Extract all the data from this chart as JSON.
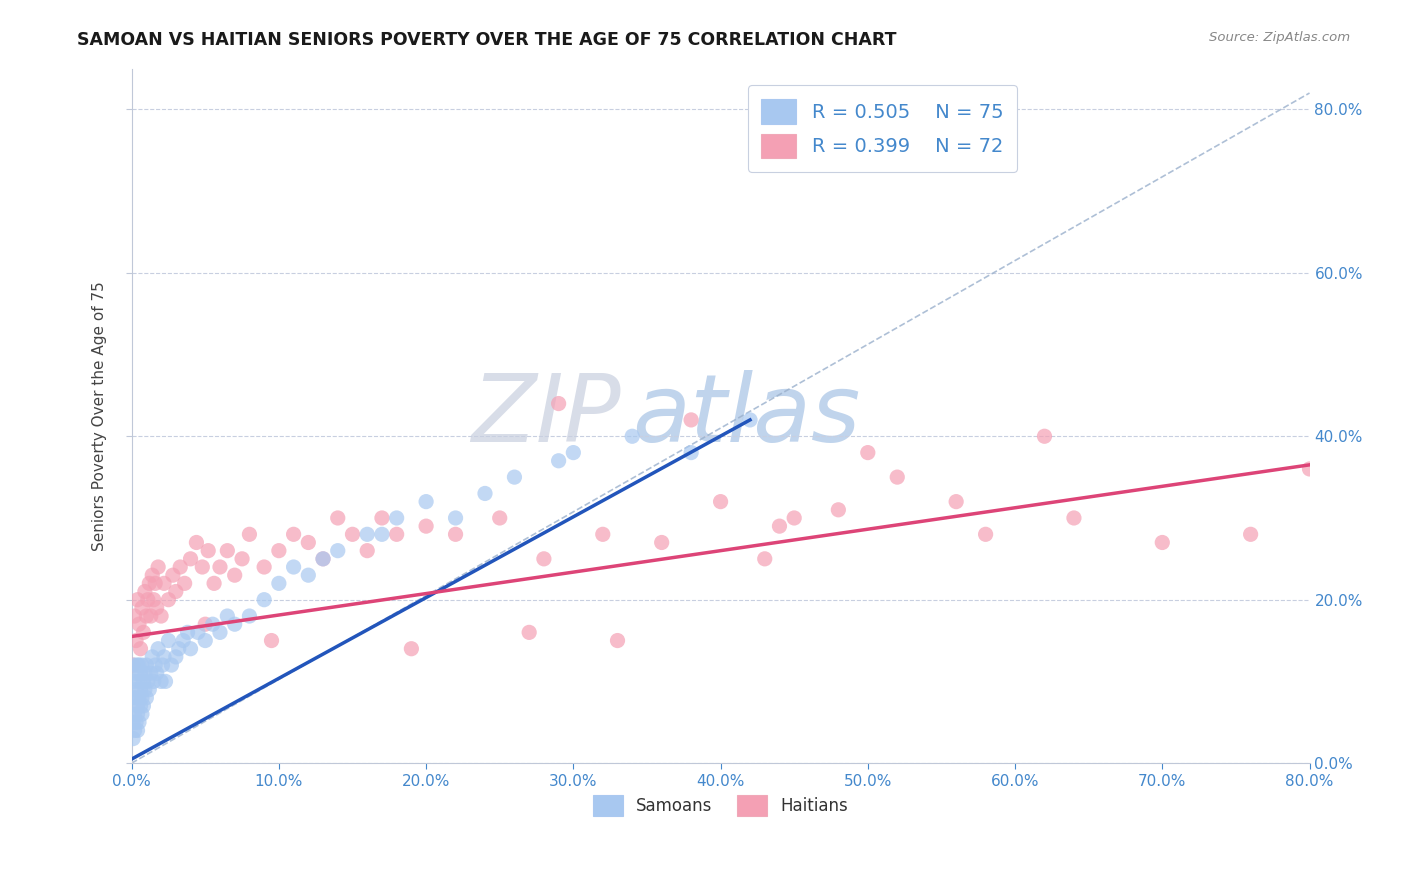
{
  "title": "SAMOAN VS HAITIAN SENIORS POVERTY OVER THE AGE OF 75 CORRELATION CHART",
  "source": "Source: ZipAtlas.com",
  "ylabel": "Seniors Poverty Over the Age of 75",
  "samoan_R": 0.505,
  "samoan_N": 75,
  "haitian_R": 0.399,
  "haitian_N": 72,
  "samoan_color": "#a8c8f0",
  "haitian_color": "#f4a0b4",
  "samoan_line_color": "#2255bb",
  "haitian_line_color": "#dd4477",
  "diagonal_color": "#9ab0cc",
  "background_color": "#ffffff",
  "zip_watermark_color": "#d8dde8",
  "atlas_watermark_color": "#c0d4ec",
  "xlim": [
    0.0,
    0.8
  ],
  "ylim": [
    0.0,
    0.85
  ],
  "xticks": [
    0.0,
    0.1,
    0.2,
    0.3,
    0.4,
    0.5,
    0.6,
    0.7,
    0.8
  ],
  "yticks": [
    0.0,
    0.2,
    0.4,
    0.6,
    0.8
  ],
  "samoan_x": [
    0.001,
    0.001,
    0.001,
    0.002,
    0.002,
    0.002,
    0.002,
    0.003,
    0.003,
    0.003,
    0.003,
    0.004,
    0.004,
    0.004,
    0.004,
    0.005,
    0.005,
    0.005,
    0.005,
    0.006,
    0.006,
    0.006,
    0.007,
    0.007,
    0.007,
    0.008,
    0.008,
    0.009,
    0.009,
    0.01,
    0.01,
    0.011,
    0.012,
    0.013,
    0.014,
    0.015,
    0.016,
    0.017,
    0.018,
    0.02,
    0.021,
    0.022,
    0.023,
    0.025,
    0.027,
    0.03,
    0.032,
    0.035,
    0.038,
    0.04,
    0.045,
    0.05,
    0.055,
    0.06,
    0.065,
    0.07,
    0.08,
    0.09,
    0.1,
    0.11,
    0.12,
    0.14,
    0.16,
    0.18,
    0.2,
    0.22,
    0.24,
    0.26,
    0.3,
    0.34,
    0.38,
    0.42,
    0.17,
    0.13,
    0.29
  ],
  "samoan_y": [
    0.05,
    0.08,
    0.03,
    0.1,
    0.06,
    0.12,
    0.04,
    0.08,
    0.11,
    0.05,
    0.09,
    0.07,
    0.12,
    0.06,
    0.04,
    0.1,
    0.08,
    0.05,
    0.12,
    0.07,
    0.09,
    0.11,
    0.08,
    0.12,
    0.06,
    0.1,
    0.07,
    0.09,
    0.11,
    0.08,
    0.12,
    0.1,
    0.09,
    0.11,
    0.13,
    0.1,
    0.12,
    0.11,
    0.14,
    0.1,
    0.12,
    0.13,
    0.1,
    0.15,
    0.12,
    0.13,
    0.14,
    0.15,
    0.16,
    0.14,
    0.16,
    0.15,
    0.17,
    0.16,
    0.18,
    0.17,
    0.18,
    0.2,
    0.22,
    0.24,
    0.23,
    0.26,
    0.28,
    0.3,
    0.32,
    0.3,
    0.33,
    0.35,
    0.38,
    0.4,
    0.38,
    0.42,
    0.28,
    0.25,
    0.37
  ],
  "haitian_x": [
    0.001,
    0.002,
    0.003,
    0.004,
    0.005,
    0.006,
    0.007,
    0.008,
    0.009,
    0.01,
    0.011,
    0.012,
    0.013,
    0.014,
    0.015,
    0.016,
    0.017,
    0.018,
    0.02,
    0.022,
    0.025,
    0.028,
    0.03,
    0.033,
    0.036,
    0.04,
    0.044,
    0.048,
    0.052,
    0.056,
    0.06,
    0.065,
    0.07,
    0.075,
    0.08,
    0.09,
    0.1,
    0.11,
    0.12,
    0.13,
    0.14,
    0.15,
    0.16,
    0.17,
    0.18,
    0.2,
    0.22,
    0.25,
    0.28,
    0.32,
    0.36,
    0.4,
    0.44,
    0.48,
    0.52,
    0.58,
    0.64,
    0.7,
    0.76,
    0.8,
    0.05,
    0.095,
    0.19,
    0.27,
    0.33,
    0.45,
    0.56,
    0.62,
    0.43,
    0.5,
    0.38,
    0.29
  ],
  "haitian_y": [
    0.12,
    0.18,
    0.15,
    0.2,
    0.17,
    0.14,
    0.19,
    0.16,
    0.21,
    0.18,
    0.2,
    0.22,
    0.18,
    0.23,
    0.2,
    0.22,
    0.19,
    0.24,
    0.18,
    0.22,
    0.2,
    0.23,
    0.21,
    0.24,
    0.22,
    0.25,
    0.27,
    0.24,
    0.26,
    0.22,
    0.24,
    0.26,
    0.23,
    0.25,
    0.28,
    0.24,
    0.26,
    0.28,
    0.27,
    0.25,
    0.3,
    0.28,
    0.26,
    0.3,
    0.28,
    0.29,
    0.28,
    0.3,
    0.25,
    0.28,
    0.27,
    0.32,
    0.29,
    0.31,
    0.35,
    0.28,
    0.3,
    0.27,
    0.28,
    0.36,
    0.17,
    0.15,
    0.14,
    0.16,
    0.15,
    0.3,
    0.32,
    0.4,
    0.25,
    0.38,
    0.42,
    0.44
  ],
  "samoan_line": [
    [
      -0.005,
      0.0
    ],
    [
      0.42,
      0.42
    ]
  ],
  "haitian_line": [
    [
      0.0,
      0.155
    ],
    [
      0.8,
      0.365
    ]
  ],
  "diagonal_line": [
    [
      0.0,
      0.0
    ],
    [
      0.8,
      0.82
    ]
  ]
}
